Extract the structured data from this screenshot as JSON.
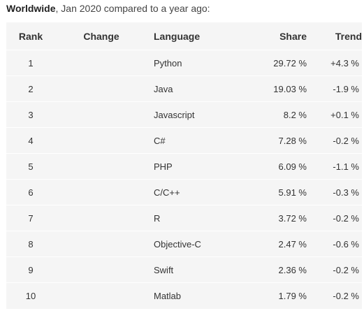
{
  "caption": {
    "bold": "Worldwide",
    "rest": ", Jan 2020 compared to a year ago:"
  },
  "table": {
    "headers": {
      "rank": "Rank",
      "change": "Change",
      "language": "Language",
      "share": "Share",
      "trend": "Trend"
    },
    "rows": [
      {
        "rank": "1",
        "language": "Python",
        "share": "29.72 %",
        "trend": "+4.3 %"
      },
      {
        "rank": "2",
        "language": "Java",
        "share": "19.03 %",
        "trend": "-1.9 %"
      },
      {
        "rank": "3",
        "language": "Javascript",
        "share": "8.2 %",
        "trend": "+0.1 %"
      },
      {
        "rank": "4",
        "language": "C#",
        "share": "7.28 %",
        "trend": "-0.2 %"
      },
      {
        "rank": "5",
        "language": "PHP",
        "share": "6.09 %",
        "trend": "-1.1 %"
      },
      {
        "rank": "6",
        "language": "C/C++",
        "share": "5.91 %",
        "trend": "-0.3 %"
      },
      {
        "rank": "7",
        "language": "R",
        "share": "3.72 %",
        "trend": "-0.2 %"
      },
      {
        "rank": "8",
        "language": "Objective-C",
        "share": "2.47 %",
        "trend": "-0.6 %"
      },
      {
        "rank": "9",
        "language": "Swift",
        "share": "2.36 %",
        "trend": "-0.2 %"
      },
      {
        "rank": "10",
        "language": "Matlab",
        "share": "1.79 %",
        "trend": "-0.2 %"
      }
    ]
  }
}
